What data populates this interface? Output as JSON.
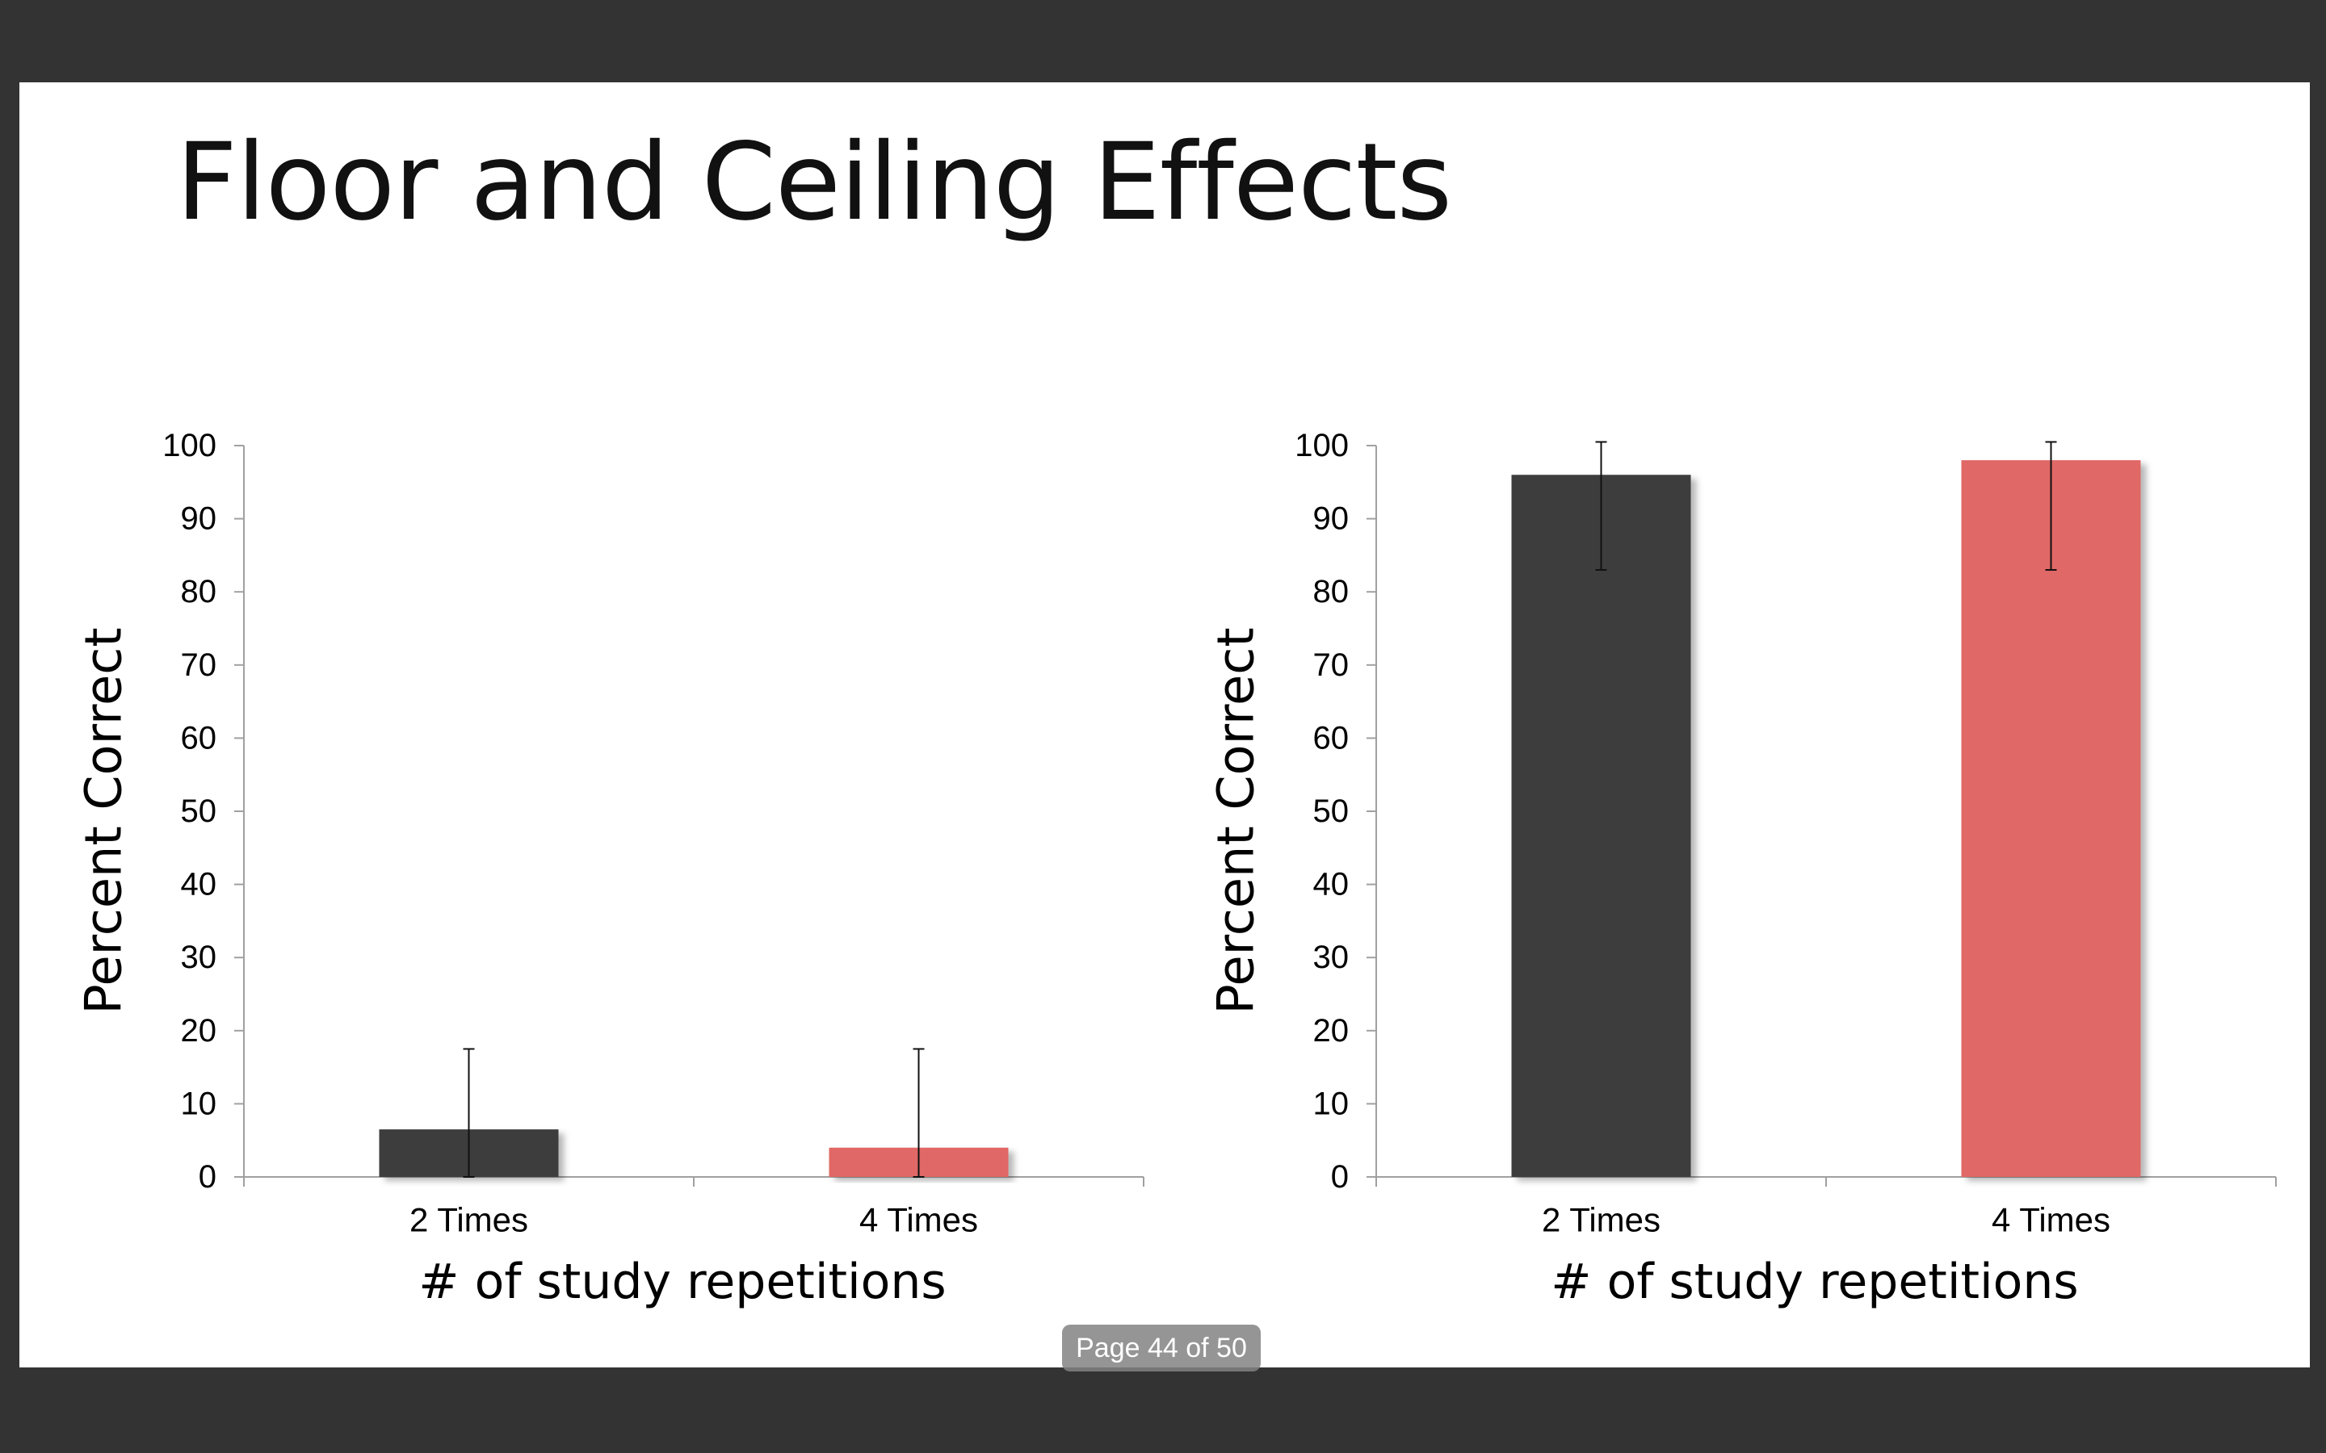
{
  "slide": {
    "title": "Floor and Ceiling Effects"
  },
  "viewer": {
    "page_indicator": "Page 44 of 50"
  },
  "colors": {
    "series_2_times": "#3d3d3d",
    "series_4_times": "#e06766",
    "background": "#333333"
  },
  "chart_data": [
    {
      "type": "bar",
      "categories": [
        "2 Times",
        "4 Times"
      ],
      "values": [
        6.5,
        4
      ],
      "error_bars": [
        {
          "low": 0,
          "high": 17.5
        },
        {
          "low": 0,
          "high": 17.5
        }
      ],
      "title": "",
      "xlabel": "# of study repetitions",
      "ylabel": "Percent Correct",
      "ylim": [
        0,
        100
      ],
      "yticks": [
        0,
        10,
        20,
        30,
        40,
        50,
        60,
        70,
        80,
        90,
        100
      ],
      "grid": false,
      "legend": "none"
    },
    {
      "type": "bar",
      "categories": [
        "2 Times",
        "4 Times"
      ],
      "values": [
        96,
        98
      ],
      "error_bars": [
        {
          "low": 83,
          "high": 100.5
        },
        {
          "low": 83,
          "high": 100.5
        }
      ],
      "title": "",
      "xlabel": "# of study repetitions",
      "ylabel": "Percent Correct",
      "ylim": [
        0,
        100
      ],
      "yticks": [
        0,
        10,
        20,
        30,
        40,
        50,
        60,
        70,
        80,
        90,
        100
      ],
      "grid": false,
      "legend": "none"
    }
  ]
}
